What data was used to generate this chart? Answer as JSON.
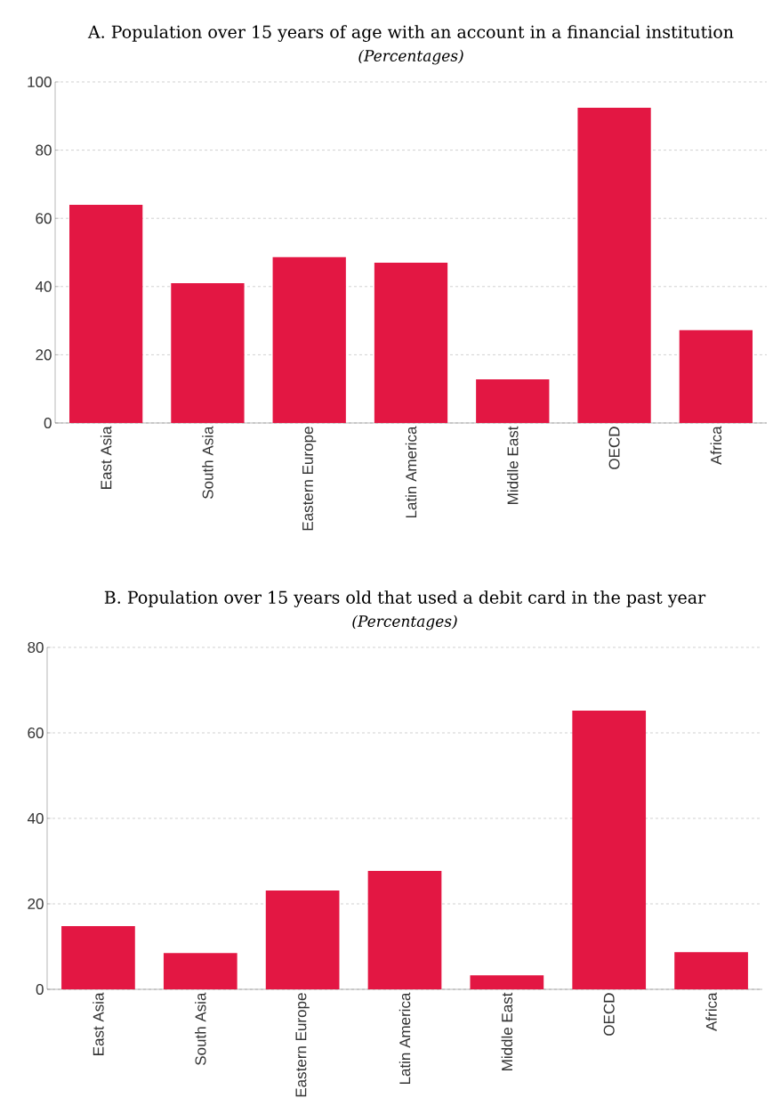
{
  "chart_data": [
    {
      "type": "bar",
      "title": "A. Population over 15 years of age with an account in a financial institution",
      "subtitle": "(Percentages)",
      "categories": [
        "East Asia",
        "South Asia",
        "Eastern Europe",
        "Latin America",
        "Middle East",
        "OECD",
        "Africa"
      ],
      "values": [
        64.0,
        41.0,
        48.6,
        47.0,
        12.8,
        92.4,
        27.2
      ],
      "color": "#e31743",
      "ylim": [
        0,
        100
      ],
      "yticks": [
        0,
        20,
        40,
        60,
        80,
        100
      ],
      "grid": "y"
    },
    {
      "type": "bar",
      "title": "B. Population over 15 years old that used a debit card in the past year",
      "subtitle": "(Percentages)",
      "categories": [
        "East Asia",
        "South Asia",
        "Eastern Europe",
        "Latin America",
        "Middle East",
        "OECD",
        "Africa"
      ],
      "values": [
        14.8,
        8.5,
        23.1,
        27.7,
        3.3,
        65.2,
        8.7
      ],
      "color": "#e31743",
      "ylim": [
        0,
        80
      ],
      "yticks": [
        0,
        20,
        40,
        60,
        80
      ],
      "grid": "y"
    }
  ]
}
